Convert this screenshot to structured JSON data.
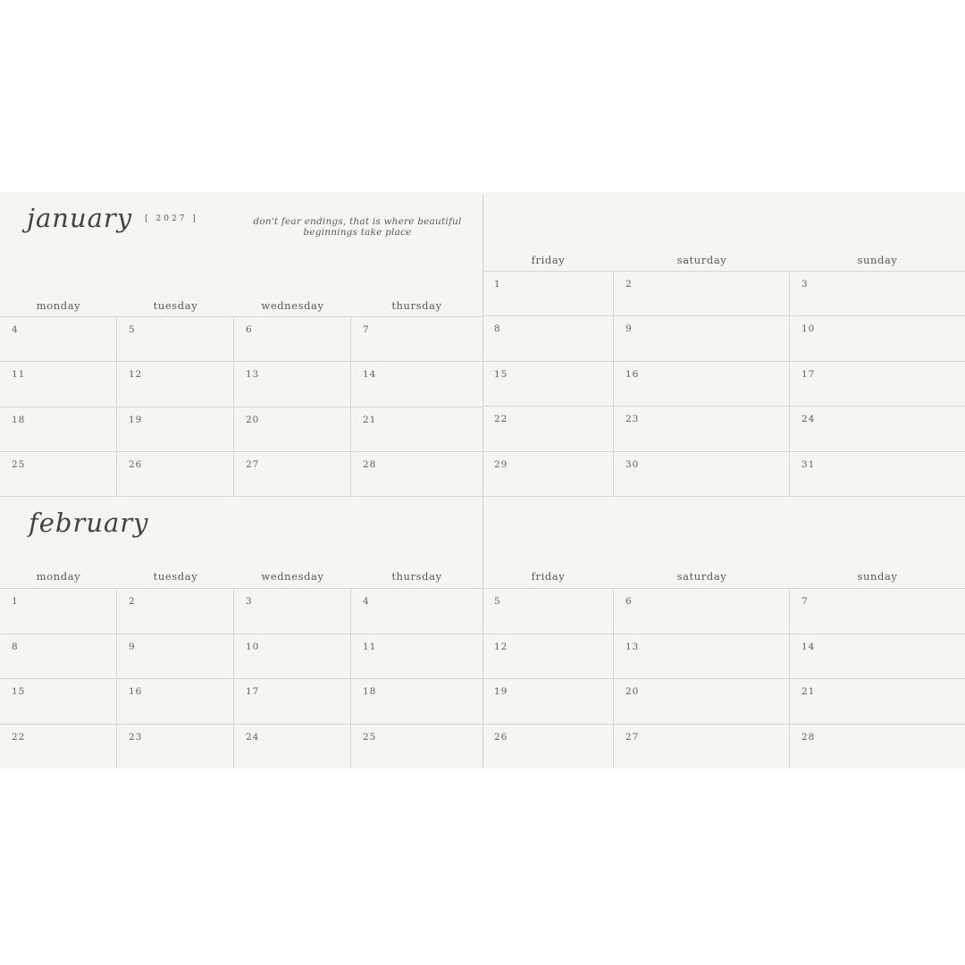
{
  "colors": {
    "page_bg": "#ffffff",
    "panel_bg": "#f7f5f0",
    "grid_line": "#d8d5cd",
    "gutter_line": "#cfccc5",
    "heading_ink": "#45433f",
    "label_ink": "#5b5852",
    "number_ink": "#63605a",
    "quote_ink": "#5d5b56"
  },
  "months": [
    {
      "name": "january",
      "year_label": "[ 2027 ]",
      "quote": "don't fear endings, that is where beautiful beginnings take place",
      "left_day_headers": [
        "monday",
        "tuesday",
        "wednesday",
        "thursday"
      ],
      "right_day_headers": [
        "friday",
        "saturday",
        "sunday"
      ],
      "left_weeks": [
        [
          "4",
          "5",
          "6",
          "7"
        ],
        [
          "11",
          "12",
          "13",
          "14"
        ],
        [
          "18",
          "19",
          "20",
          "21"
        ],
        [
          "25",
          "26",
          "27",
          "28"
        ]
      ],
      "right_weeks": [
        [
          "1",
          "2",
          "3"
        ],
        [
          "8",
          "9",
          "10"
        ],
        [
          "15",
          "16",
          "17"
        ],
        [
          "22",
          "23",
          "24"
        ],
        [
          "29",
          "30",
          "31"
        ]
      ]
    },
    {
      "name": "february",
      "left_day_headers": [
        "monday",
        "tuesday",
        "wednesday",
        "thursday"
      ],
      "right_day_headers": [
        "friday",
        "saturday",
        "sunday"
      ],
      "left_weeks": [
        [
          "1",
          "2",
          "3",
          "4"
        ],
        [
          "8",
          "9",
          "10",
          "11"
        ],
        [
          "15",
          "16",
          "17",
          "18"
        ],
        [
          "22",
          "23",
          "24",
          "25"
        ]
      ],
      "right_weeks": [
        [
          "5",
          "6",
          "7"
        ],
        [
          "12",
          "13",
          "14"
        ],
        [
          "19",
          "20",
          "21"
        ],
        [
          "26",
          "27",
          "28"
        ]
      ]
    }
  ]
}
